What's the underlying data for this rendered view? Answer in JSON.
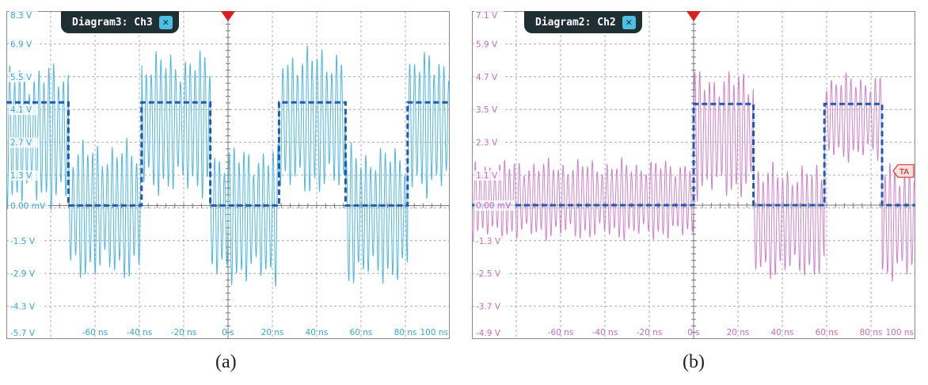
{
  "chart_data": [
    {
      "type": "line",
      "panel_label": "(a)",
      "window_title": "Diagram3: Ch3",
      "trace_color": "#4fb6dc",
      "label_color": "#3aa6d4",
      "reference_color": "#2059b0",
      "grid": true,
      "xlim": [
        -100,
        100
      ],
      "ylim": [
        -5.7,
        8.3
      ],
      "x_tick_labels": [
        {
          "x": -60,
          "label": "-60 ns"
        },
        {
          "x": -40,
          "label": "-40 ns"
        },
        {
          "x": -20,
          "label": "-20 ns"
        },
        {
          "x": 0,
          "label": "0 s"
        },
        {
          "x": 20,
          "label": "20 ns"
        },
        {
          "x": 40,
          "label": "40 ns"
        },
        {
          "x": 60,
          "label": "60 ns"
        },
        {
          "x": 80,
          "label": "80 ns"
        },
        {
          "x": 100,
          "label": "100 ns"
        }
      ],
      "y_tick_labels": [
        {
          "y": 8.3,
          "label": "8.3 V"
        },
        {
          "y": 6.9,
          "label": "6.9 V"
        },
        {
          "y": 5.5,
          "label": "5.5 V"
        },
        {
          "y": 4.1,
          "label": "4.1 V"
        },
        {
          "y": 2.7,
          "label": "2.7 V"
        },
        {
          "y": 1.3,
          "label": "1.3 V"
        },
        {
          "y": 0.0,
          "label": "0.00 mV"
        },
        {
          "y": -1.5,
          "label": "-1.5 V"
        },
        {
          "y": -2.9,
          "label": "-2.9 V"
        },
        {
          "y": -4.3,
          "label": "-4.3 V"
        },
        {
          "y": -5.7,
          "label": "-5.7 V"
        }
      ],
      "series": [
        {
          "kind": "reference_square",
          "x": [
            -100,
            -72,
            -72,
            -39,
            -39,
            -8,
            -8,
            23,
            23,
            53,
            53,
            81,
            81,
            100
          ],
          "y": [
            4.4,
            4.4,
            0,
            0,
            4.4,
            4.4,
            0,
            0,
            4.4,
            4.4,
            0,
            0,
            4.4,
            4.4
          ]
        },
        {
          "kind": "oscillation",
          "period_ns": 2.2,
          "segments": [
            {
              "x0": -100,
              "x1": -72,
              "center": 3.0,
              "amplitude": 2.5
            },
            {
              "x0": -72,
              "x1": -39,
              "center": -0.2,
              "amplitude": 2.4
            },
            {
              "x0": -39,
              "x1": -8,
              "center": 3.5,
              "amplitude": 2.5
            },
            {
              "x0": -8,
              "x1": 23,
              "center": -0.4,
              "amplitude": 2.4
            },
            {
              "x0": 23,
              "x1": 53,
              "center": 3.6,
              "amplitude": 2.6
            },
            {
              "x0": 53,
              "x1": 81,
              "center": -0.4,
              "amplitude": 2.4
            },
            {
              "x0": 81,
              "x1": 100,
              "center": 3.5,
              "amplitude": 2.5
            }
          ]
        }
      ]
    },
    {
      "type": "line",
      "panel_label": "(b)",
      "window_title": "Diagram2: Ch2",
      "trace_color": "#cf82c8",
      "label_color": "#c86cbd",
      "reference_color": "#2059b0",
      "trigger_label": "TA",
      "grid": true,
      "xlim": [
        -100,
        100
      ],
      "ylim": [
        -4.9,
        7.1
      ],
      "x_tick_labels": [
        {
          "x": -60,
          "label": "-60 ns"
        },
        {
          "x": -40,
          "label": "-40 ns"
        },
        {
          "x": -20,
          "label": "-20 ns"
        },
        {
          "x": 0,
          "label": "0 s"
        },
        {
          "x": 20,
          "label": "20 ns"
        },
        {
          "x": 40,
          "label": "40 ns"
        },
        {
          "x": 60,
          "label": "60 ns"
        },
        {
          "x": 80,
          "label": "80 ns"
        },
        {
          "x": 100,
          "label": "100 ns"
        }
      ],
      "y_tick_labels": [
        {
          "y": 7.1,
          "label": "7.1 V"
        },
        {
          "y": 5.9,
          "label": "5.9 V"
        },
        {
          "y": 4.7,
          "label": "4.7 V"
        },
        {
          "y": 3.5,
          "label": "3.5 V"
        },
        {
          "y": 2.3,
          "label": "2.3 V"
        },
        {
          "y": 1.1,
          "label": "1.1 V"
        },
        {
          "y": 0.0,
          "label": "0.00 mV"
        },
        {
          "y": -1.3,
          "label": "-1.3 V"
        },
        {
          "y": -2.5,
          "label": "-2.5 V"
        },
        {
          "y": -3.7,
          "label": "-3.7 V"
        },
        {
          "y": -4.9,
          "label": "-4.9 V"
        }
      ],
      "series": [
        {
          "kind": "reference_square",
          "x": [
            -100,
            0,
            0,
            27,
            27,
            59,
            59,
            85,
            85,
            100
          ],
          "y": [
            0,
            0,
            3.7,
            3.7,
            0,
            0,
            3.7,
            3.7,
            0,
            0
          ]
        },
        {
          "kind": "oscillation",
          "period_ns": 2.2,
          "segments": [
            {
              "x0": -100,
              "x1": 0,
              "center": 0.2,
              "amplitude": 1.2
            },
            {
              "x0": 0,
              "x1": 27,
              "center": 2.6,
              "amplitude": 1.9
            },
            {
              "x0": 27,
              "x1": 59,
              "center": -0.6,
              "amplitude": 1.7
            },
            {
              "x0": 59,
              "x1": 85,
              "center": 3.2,
              "amplitude": 1.3
            },
            {
              "x0": 85,
              "x1": 100,
              "center": -0.6,
              "amplitude": 1.8
            }
          ]
        }
      ]
    }
  ]
}
